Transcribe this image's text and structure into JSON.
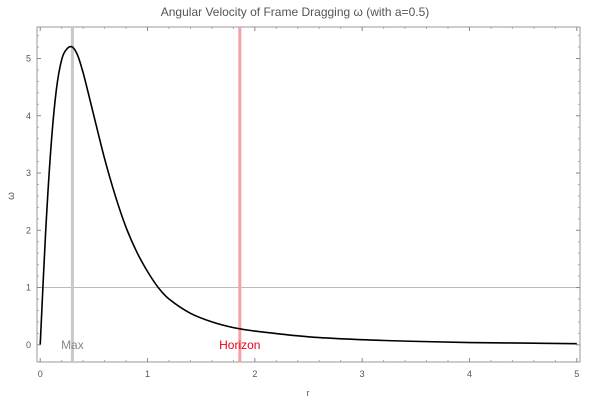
{
  "chart_data": {
    "type": "line",
    "title": "Angular Velocity of Frame Dragging ω (with a=0.5)",
    "xlabel": "r",
    "ylabel": "ω",
    "xlim": [
      -0.03,
      5.03
    ],
    "ylim": [
      -0.3,
      5.55
    ],
    "x_ticks": [
      "0",
      "1",
      "2",
      "3",
      "4",
      "5"
    ],
    "y_ticks": [
      "0",
      "1",
      "2",
      "3",
      "4",
      "5"
    ],
    "x_tick_values": [
      0,
      1,
      2,
      3,
      4,
      5
    ],
    "y_tick_values": [
      0,
      1,
      2,
      3,
      4,
      5
    ],
    "series": [
      {
        "color": "#000000",
        "x": [
          0,
          0.05,
          0.1,
          0.15,
          0.2,
          0.25,
          0.3,
          0.35,
          0.4,
          0.45,
          0.5,
          0.6,
          0.7,
          0.8,
          0.9,
          1.0,
          1.1,
          1.2,
          1.4,
          1.6,
          1.8,
          2.0,
          2.5,
          3.0,
          3.5,
          4.0,
          4.5,
          5.0
        ],
        "y": [
          0,
          1.95,
          3.45,
          4.45,
          4.98,
          5.17,
          5.2,
          5.05,
          4.75,
          4.38,
          4.0,
          3.25,
          2.6,
          2.05,
          1.62,
          1.28,
          1.0,
          0.8,
          0.55,
          0.4,
          0.3,
          0.24,
          0.14,
          0.09,
          0.06,
          0.04,
          0.03,
          0.02
        ]
      }
    ],
    "reference_line": {
      "y": 1,
      "color": "#bbbbbb"
    },
    "markers": [
      {
        "x": 0.3,
        "label": "Max",
        "color": "#c8c8c8",
        "label_color": "#888888"
      },
      {
        "x": 1.86,
        "label": "Horizon",
        "color": "#f7a0a6",
        "label_color": "#e8001c"
      }
    ],
    "grid": false
  }
}
